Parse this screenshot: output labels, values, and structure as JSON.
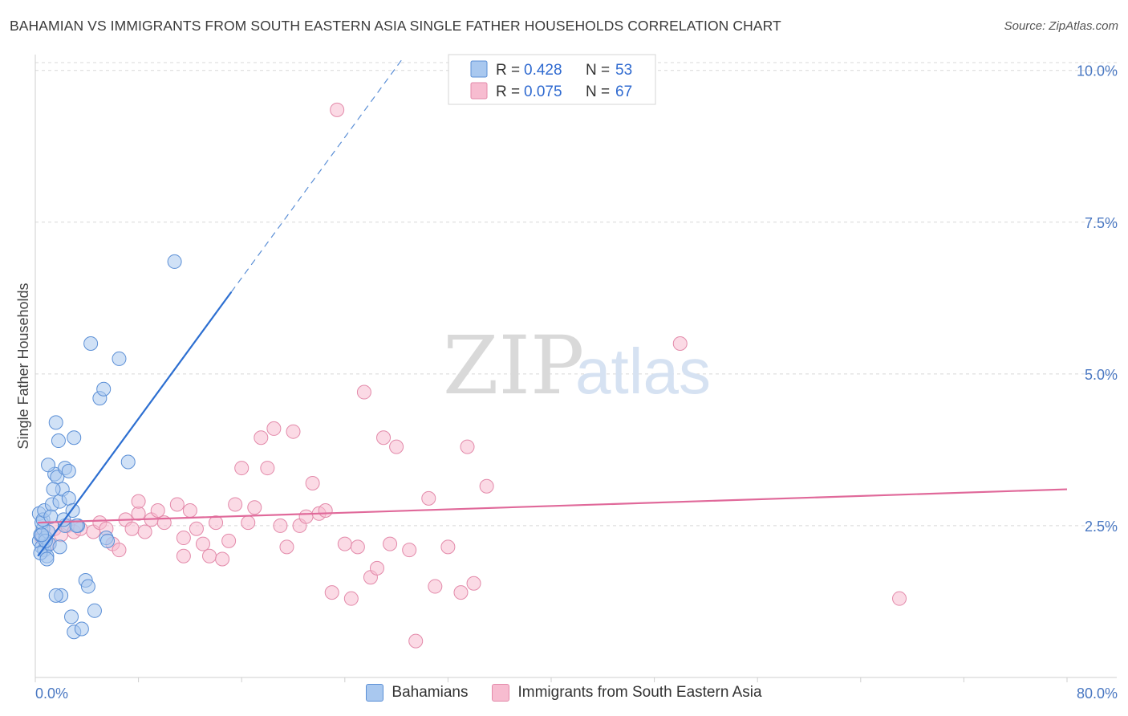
{
  "header": {
    "title": "BAHAMIAN VS IMMIGRANTS FROM SOUTH EASTERN ASIA SINGLE FATHER HOUSEHOLDS CORRELATION CHART",
    "source_label": "Source:",
    "source_name": "ZipAtlas.com"
  },
  "watermark": {
    "zip": "ZIP",
    "atlas": "atlas"
  },
  "colors": {
    "blue_fill": "#a9c8ef",
    "blue_stroke": "#5b8fd6",
    "blue_line": "#2d6fd1",
    "pink_fill": "#f7bcd0",
    "pink_stroke": "#e38aaa",
    "pink_line": "#e0699a",
    "grid": "#d8d8d8",
    "tick_text": "#4a78c2"
  },
  "legend": {
    "series": [
      {
        "name": "Bahamians",
        "r_label": "R =",
        "r_value": "0.428",
        "n_label": "N =",
        "n_value": "53"
      },
      {
        "name": "Immigrants from South Eastern Asia",
        "r_label": "R =",
        "r_value": "0.075",
        "n_label": "N =",
        "n_value": "67"
      }
    ]
  },
  "chart_data": {
    "type": "scatter",
    "title": "BAHAMIAN VS IMMIGRANTS FROM SOUTH EASTERN ASIA SINGLE FATHER HOUSEHOLDS CORRELATION CHART",
    "xlabel": "",
    "ylabel": "Single Father Households",
    "xlim": [
      0,
      80
    ],
    "ylim": [
      0,
      10.3
    ],
    "x_tick_labels": [
      "0.0%",
      "80.0%"
    ],
    "y_ticks": [
      2.5,
      5.0,
      7.5,
      10.0
    ],
    "y_tick_labels": [
      "2.5%",
      "5.0%",
      "7.5%",
      "10.0%"
    ],
    "grid": true,
    "legend_position": "top-center",
    "series": [
      {
        "name": "Bahamians",
        "color": "#a9c8ef",
        "trend": {
          "x0": 0.2,
          "y0": 2.0,
          "x1": 15.2,
          "y1": 6.35,
          "dash_to_x": 28.5,
          "dash_to_y": 10.2
        },
        "points": [
          [
            0.3,
            2.25
          ],
          [
            0.4,
            2.35
          ],
          [
            0.5,
            2.15
          ],
          [
            0.6,
            2.45
          ],
          [
            0.7,
            2.1
          ],
          [
            0.3,
            2.7
          ],
          [
            0.5,
            2.55
          ],
          [
            0.8,
            2.3
          ],
          [
            0.9,
            2.0
          ],
          [
            1.0,
            2.4
          ],
          [
            0.6,
            2.6
          ],
          [
            1.1,
            2.2
          ],
          [
            0.4,
            2.05
          ],
          [
            0.7,
            2.75
          ],
          [
            1.3,
            2.85
          ],
          [
            1.5,
            3.35
          ],
          [
            1.7,
            3.3
          ],
          [
            1.9,
            2.9
          ],
          [
            2.1,
            3.1
          ],
          [
            2.3,
            2.5
          ],
          [
            2.6,
            2.95
          ],
          [
            2.9,
            2.75
          ],
          [
            3.3,
            2.5
          ],
          [
            1.6,
            4.2
          ],
          [
            1.8,
            3.9
          ],
          [
            2.3,
            3.45
          ],
          [
            2.6,
            3.4
          ],
          [
            3.0,
            3.95
          ],
          [
            1.4,
            3.1
          ],
          [
            1.0,
            3.5
          ],
          [
            4.3,
            5.5
          ],
          [
            6.5,
            5.25
          ],
          [
            5.0,
            4.6
          ],
          [
            5.3,
            4.75
          ],
          [
            7.2,
            3.55
          ],
          [
            10.8,
            6.85
          ],
          [
            2.0,
            1.35
          ],
          [
            1.6,
            1.35
          ],
          [
            3.9,
            1.6
          ],
          [
            4.1,
            1.5
          ],
          [
            4.6,
            1.1
          ],
          [
            2.8,
            1.0
          ],
          [
            3.0,
            0.75
          ],
          [
            3.6,
            0.8
          ],
          [
            0.9,
            1.95
          ],
          [
            5.5,
            2.3
          ],
          [
            5.6,
            2.25
          ],
          [
            1.2,
            2.65
          ],
          [
            2.2,
            2.6
          ],
          [
            0.8,
            2.25
          ],
          [
            1.9,
            2.15
          ],
          [
            0.5,
            2.35
          ],
          [
            3.2,
            2.5
          ]
        ]
      },
      {
        "name": "Immigrants from South Eastern Asia",
        "color": "#f7bcd0",
        "trend": {
          "x0": 0.2,
          "y0": 2.55,
          "x1": 80,
          "y1": 3.1
        },
        "points": [
          [
            0.5,
            2.3
          ],
          [
            1.0,
            2.2
          ],
          [
            1.5,
            2.45
          ],
          [
            2.0,
            2.35
          ],
          [
            2.5,
            2.5
          ],
          [
            3.0,
            2.4
          ],
          [
            3.5,
            2.45
          ],
          [
            4.5,
            2.4
          ],
          [
            5.0,
            2.55
          ],
          [
            5.5,
            2.45
          ],
          [
            6.0,
            2.2
          ],
          [
            6.5,
            2.1
          ],
          [
            7.0,
            2.6
          ],
          [
            7.5,
            2.45
          ],
          [
            8.0,
            2.7
          ],
          [
            8.5,
            2.4
          ],
          [
            9.0,
            2.6
          ],
          [
            9.5,
            2.75
          ],
          [
            10.0,
            2.55
          ],
          [
            11.0,
            2.85
          ],
          [
            11.5,
            2.3
          ],
          [
            12.0,
            2.75
          ],
          [
            12.5,
            2.45
          ],
          [
            13.0,
            2.2
          ],
          [
            13.5,
            2.0
          ],
          [
            14.0,
            2.55
          ],
          [
            14.5,
            1.95
          ],
          [
            15.0,
            2.25
          ],
          [
            15.5,
            2.85
          ],
          [
            16.0,
            3.45
          ],
          [
            16.5,
            2.55
          ],
          [
            17.0,
            2.8
          ],
          [
            17.5,
            3.95
          ],
          [
            18.0,
            3.45
          ],
          [
            18.5,
            4.1
          ],
          [
            19.0,
            2.5
          ],
          [
            19.5,
            2.15
          ],
          [
            20.0,
            4.05
          ],
          [
            20.5,
            2.5
          ],
          [
            21.0,
            2.65
          ],
          [
            21.5,
            3.2
          ],
          [
            22.0,
            2.7
          ],
          [
            22.5,
            2.75
          ],
          [
            23.0,
            1.4
          ],
          [
            24.0,
            2.2
          ],
          [
            24.5,
            1.3
          ],
          [
            25.0,
            2.15
          ],
          [
            25.5,
            4.7
          ],
          [
            26.0,
            1.65
          ],
          [
            26.5,
            1.8
          ],
          [
            27.0,
            3.95
          ],
          [
            27.5,
            2.2
          ],
          [
            28.0,
            3.8
          ],
          [
            29.0,
            2.1
          ],
          [
            29.5,
            0.6
          ],
          [
            30.5,
            2.95
          ],
          [
            31.0,
            1.5
          ],
          [
            32.0,
            2.15
          ],
          [
            33.0,
            1.4
          ],
          [
            33.5,
            3.8
          ],
          [
            34.0,
            1.55
          ],
          [
            35.0,
            3.15
          ],
          [
            8.0,
            2.9
          ],
          [
            11.5,
            2.0
          ],
          [
            50.0,
            5.5
          ],
          [
            67.0,
            1.3
          ],
          [
            23.4,
            9.35
          ]
        ]
      }
    ]
  }
}
